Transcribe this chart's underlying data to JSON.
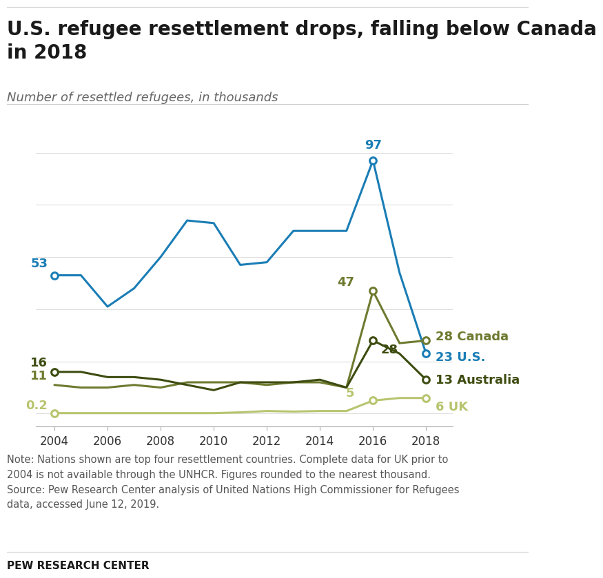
{
  "title": "U.S. refugee resettlement drops, falling below Canada\nin 2018",
  "subtitle": "Number of resettled refugees, in thousands",
  "note": "Note: Nations shown are top four resettlement countries. Complete data for UK prior to\n2004 is not available through the UNHCR. Figures rounded to the nearest thousand.\nSource: Pew Research Center analysis of United Nations High Commissioner for Refugees\ndata, accessed June 12, 2019.",
  "footer": "PEW RESEARCH CENTER",
  "years": [
    2004,
    2005,
    2006,
    2007,
    2008,
    2009,
    2010,
    2011,
    2012,
    2013,
    2014,
    2015,
    2016,
    2017,
    2018
  ],
  "US": [
    53,
    53,
    41,
    48,
    60,
    74,
    73,
    57,
    58,
    70,
    70,
    70,
    97,
    54,
    23
  ],
  "Canada": [
    11,
    10,
    10,
    11,
    10,
    12,
    12,
    12,
    11,
    12,
    12,
    10,
    47,
    27,
    28
  ],
  "Australia": [
    16,
    16,
    14,
    14,
    13,
    11,
    9,
    12,
    12,
    12,
    13,
    10,
    28,
    23,
    13
  ],
  "UK": [
    0.2,
    0.2,
    0.2,
    0.2,
    0.2,
    0.2,
    0.2,
    0.5,
    1,
    0.8,
    1,
    1,
    5,
    6,
    6
  ],
  "color_US": "#1a7db5",
  "color_Canada": "#6e7a2f",
  "color_Australia": "#3d4c10",
  "color_UK": "#b8c46e",
  "background_color": "#ffffff"
}
